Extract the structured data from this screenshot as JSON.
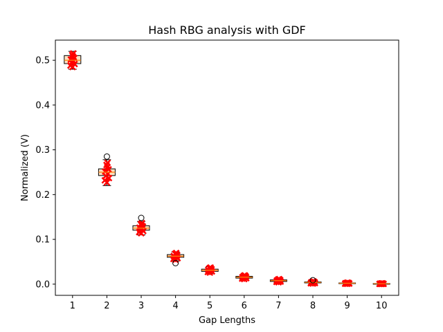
{
  "chart_data": {
    "type": "box",
    "title": "Hash RBG analysis with GDF",
    "xlabel": "Gap Lengths",
    "ylabel": "Normalized (V)",
    "xlim": [
      0.5,
      10.5
    ],
    "ylim": [
      -0.025,
      0.545
    ],
    "x_ticks": [
      1,
      2,
      3,
      4,
      5,
      6,
      7,
      8,
      9,
      10
    ],
    "x_tick_labels": [
      "1",
      "2",
      "3",
      "4",
      "5",
      "6",
      "7",
      "8",
      "9",
      "10"
    ],
    "y_ticks": [
      0.0,
      0.1,
      0.2,
      0.3,
      0.4,
      0.5
    ],
    "y_tick_labels": [
      "0.0",
      "0.1",
      "0.2",
      "0.3",
      "0.4",
      "0.5"
    ],
    "grid": false,
    "colors": {
      "box_fill": "#fde0c0",
      "median": "#ff7f0e",
      "marker": "#ff0000",
      "edge": "#000000"
    },
    "boxes": [
      {
        "x": 1,
        "q1": 0.4925,
        "median": 0.5,
        "q3": 0.5105,
        "whislo": 0.48,
        "whishi": 0.52,
        "fliers": []
      },
      {
        "x": 2,
        "q1": 0.2425,
        "median": 0.25,
        "q3": 0.2575,
        "whislo": 0.22,
        "whishi": 0.278,
        "fliers": [
          0.285
        ]
      },
      {
        "x": 3,
        "q1": 0.1205,
        "median": 0.125,
        "q3": 0.1305,
        "whislo": 0.11,
        "whishi": 0.14,
        "fliers": [
          0.148
        ]
      },
      {
        "x": 4,
        "q1": 0.06,
        "median": 0.0625,
        "q3": 0.066,
        "whislo": 0.052,
        "whishi": 0.072,
        "fliers": [
          0.047
        ]
      },
      {
        "x": 5,
        "q1": 0.0285,
        "median": 0.031,
        "q3": 0.0335,
        "whislo": 0.024,
        "whishi": 0.039,
        "fliers": []
      },
      {
        "x": 6,
        "q1": 0.0135,
        "median": 0.0155,
        "q3": 0.0175,
        "whislo": 0.01,
        "whishi": 0.021,
        "fliers": []
      },
      {
        "x": 7,
        "q1": 0.006,
        "median": 0.0078,
        "q3": 0.0095,
        "whislo": 0.003,
        "whishi": 0.0125,
        "fliers": []
      },
      {
        "x": 8,
        "q1": 0.0028,
        "median": 0.0039,
        "q3": 0.0049,
        "whislo": 0.0005,
        "whishi": 0.0068,
        "fliers": [
          0.0088
        ]
      },
      {
        "x": 9,
        "q1": 0.0013,
        "median": 0.002,
        "q3": 0.0027,
        "whislo": 0.0002,
        "whishi": 0.0038,
        "fliers": []
      },
      {
        "x": 10,
        "q1": 0.0006,
        "median": 0.001,
        "q3": 0.0014,
        "whislo": 0.0,
        "whishi": 0.002,
        "fliers": []
      }
    ]
  }
}
